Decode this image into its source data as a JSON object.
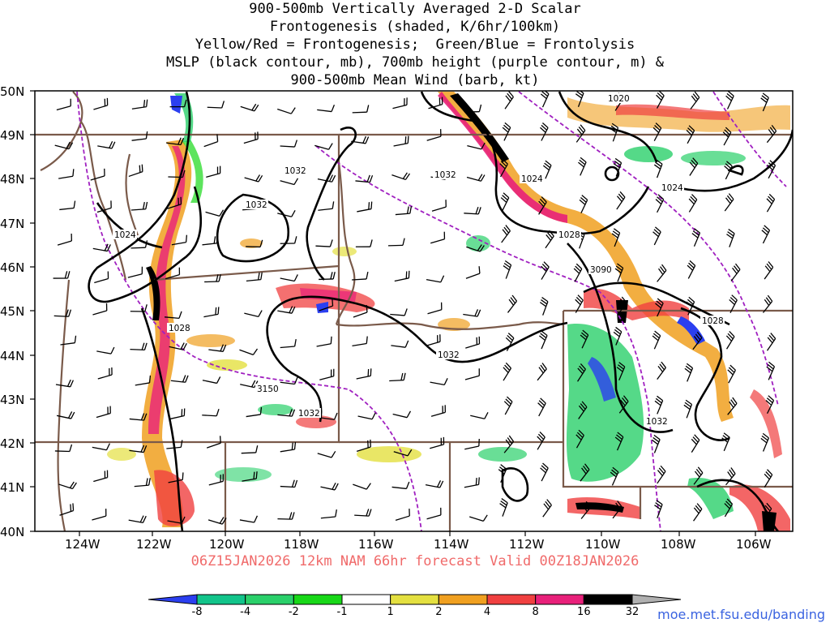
{
  "title": {
    "line1": "900-500mb Vertically Averaged 2-D Scalar",
    "line2": "Frontogenesis (shaded, K/6hr/100km)",
    "line3": "Yellow/Red = Frontogenesis;  Green/Blue = Frontolysis",
    "line4": "MSLP (black contour, mb), 700mb height (purple contour, m) &",
    "line5": "900-500mb Mean Wind (barb, kt)"
  },
  "footer": {
    "run_info": "06Z15JAN2026 12km NAM 66hr forecast Valid 00Z18JAN2026",
    "credit": "moe.met.fsu.edu/banding"
  },
  "map": {
    "lat_labels": [
      "50N",
      "49N",
      "48N",
      "47N",
      "46N",
      "45N",
      "44N",
      "43N",
      "42N",
      "41N",
      "40N"
    ],
    "lon_labels": [
      "124W",
      "122W",
      "120W",
      "118W",
      "116W",
      "114W",
      "112W",
      "110W",
      "108W",
      "106W"
    ],
    "mslp_labels": [
      "1020",
      "1024",
      "1032",
      "1032",
      "1032",
      "1024",
      "1024",
      "1028",
      "1028",
      "1032",
      "1032",
      "1032",
      "1028"
    ],
    "height_labels": [
      "3090",
      "3150"
    ],
    "colors": {
      "border": "#7a5a4a",
      "mslp": "#000000",
      "height": "#a020c0",
      "barb": "#000000"
    }
  },
  "colorbar": {
    "ticks": [
      "-8",
      "-4",
      "-2",
      "-1",
      "1",
      "2",
      "4",
      "8",
      "16",
      "32"
    ],
    "colors": [
      "#2b3ff0",
      "#12c48a",
      "#2ad06a",
      "#18d818",
      "#ffffff",
      "#e4e040",
      "#f0a020",
      "#f04040",
      "#e8207a",
      "#000000",
      "#b0b0b0"
    ]
  }
}
